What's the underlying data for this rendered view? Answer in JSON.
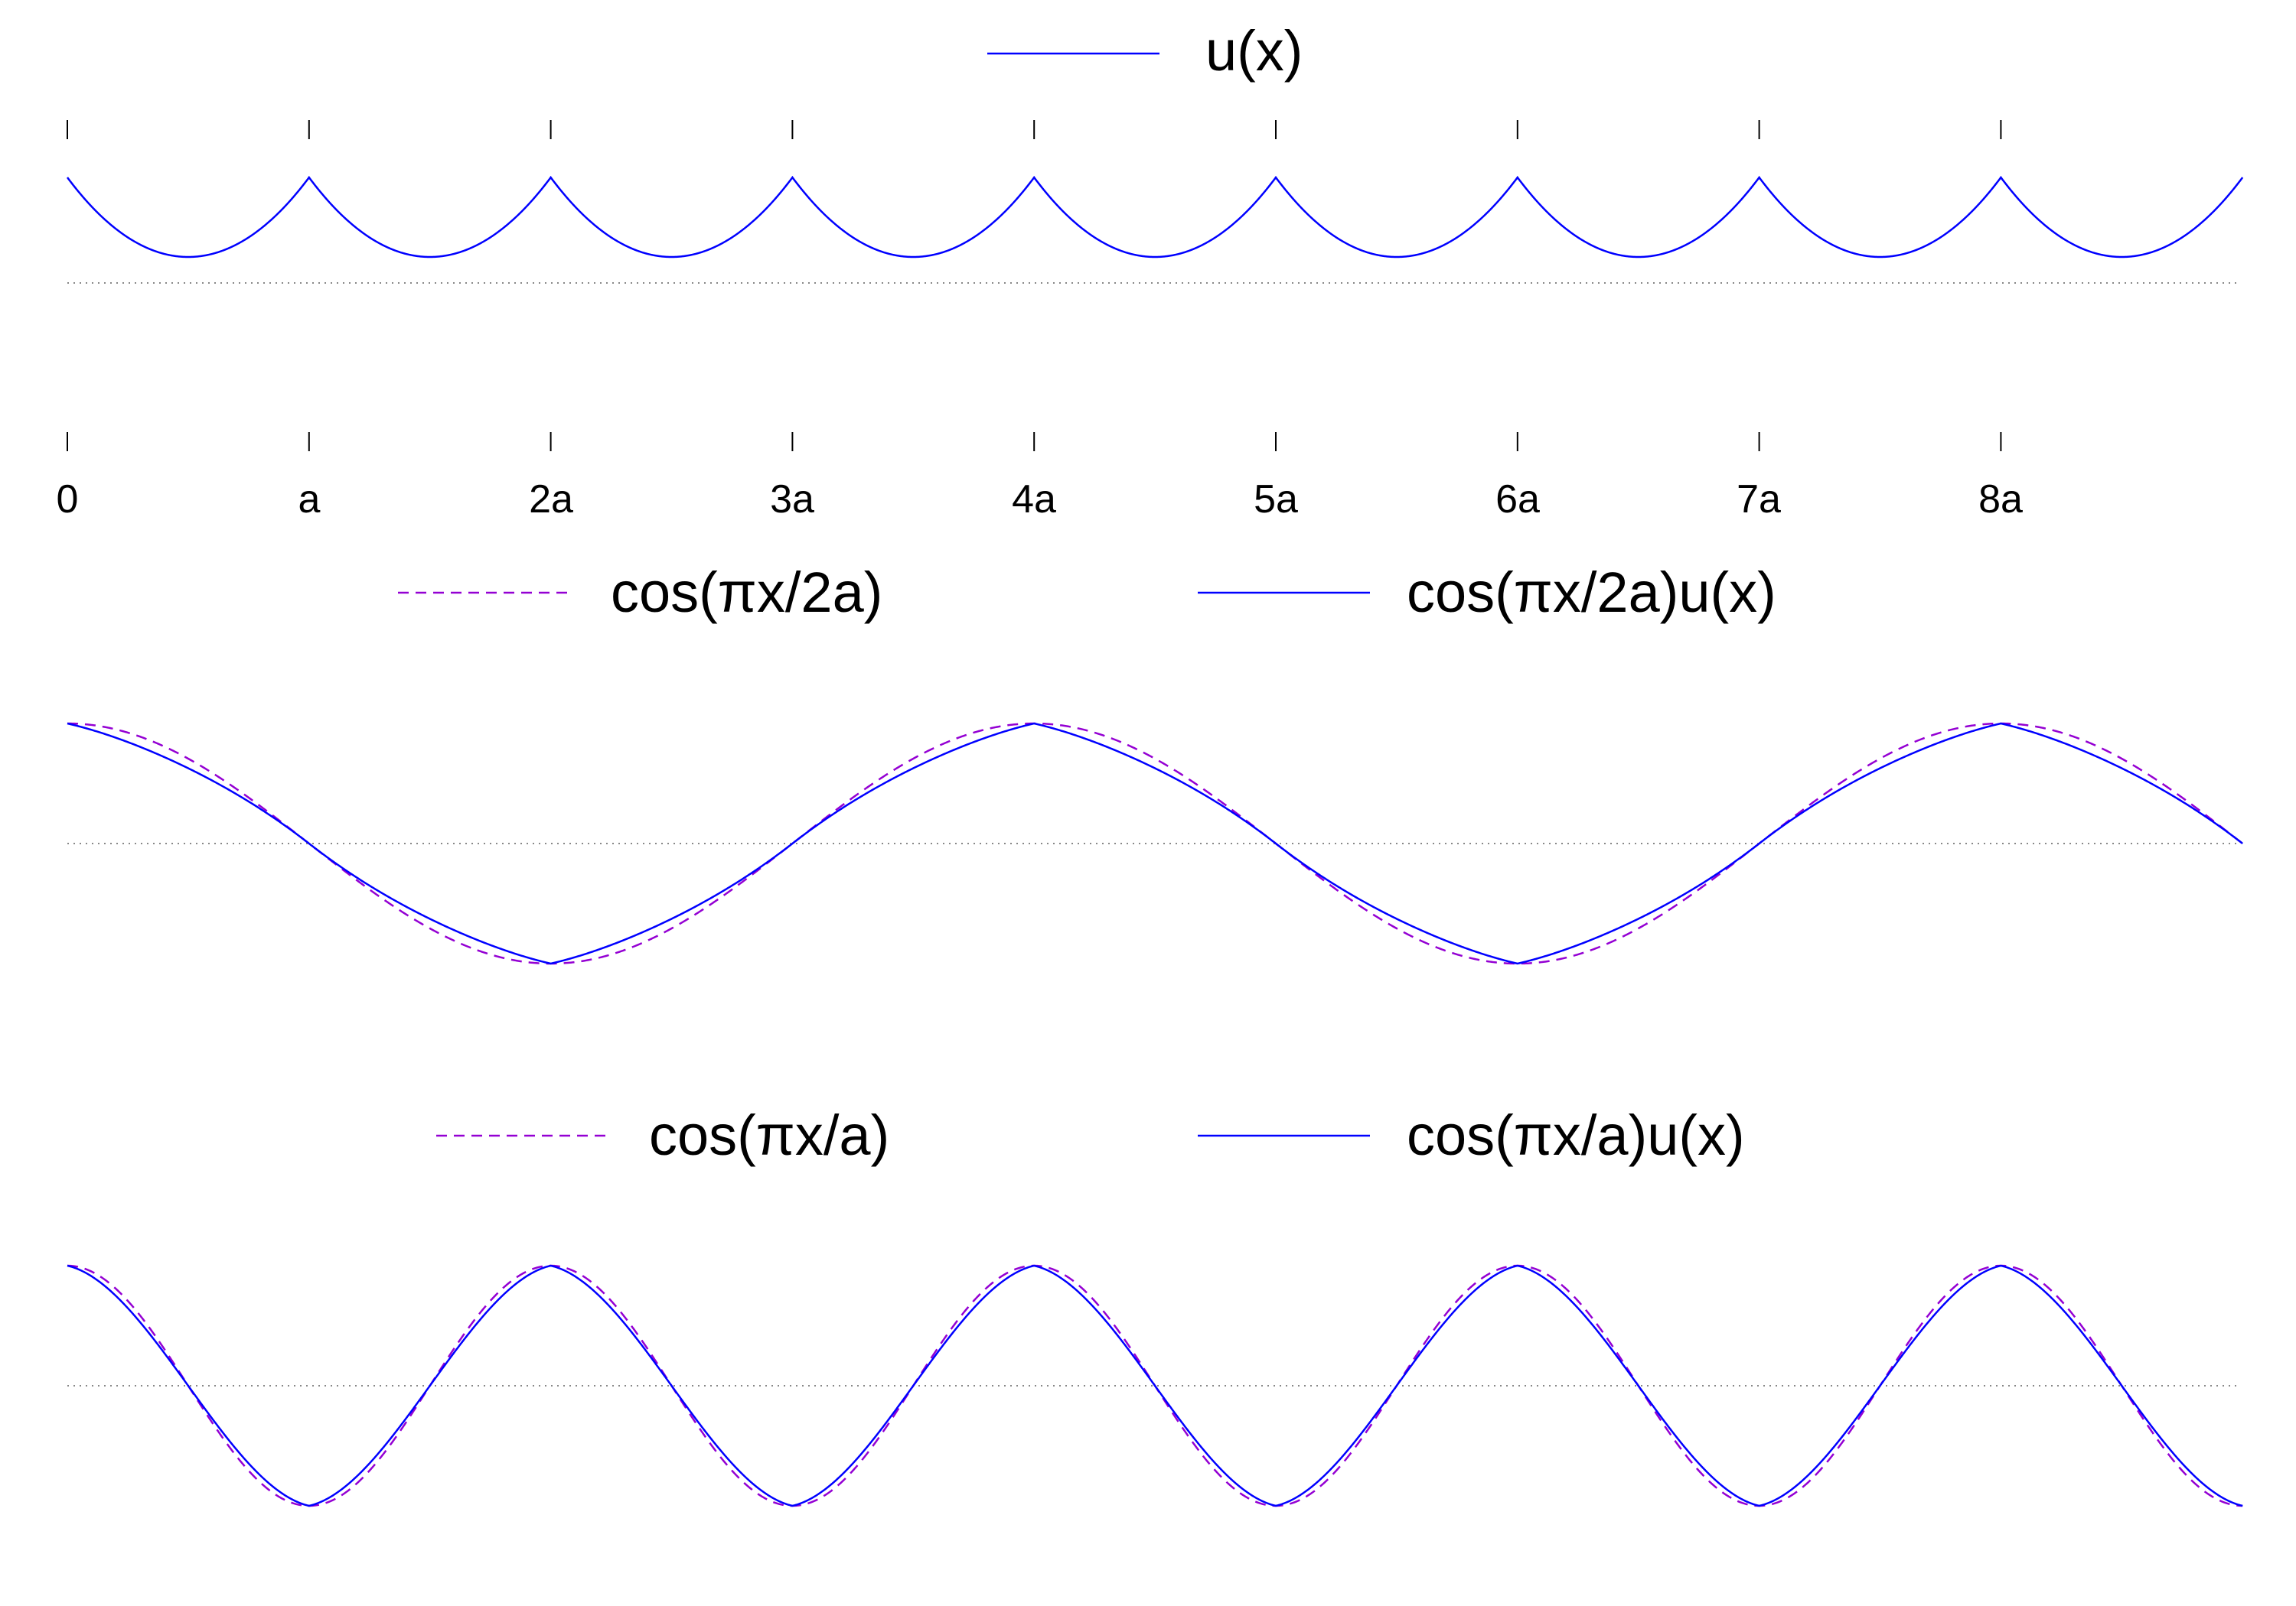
{
  "chart_data": [
    {
      "type": "line",
      "panel": "top",
      "x_tick_labels": [
        "0",
        "a",
        "2a",
        "3a",
        "4a",
        "5a",
        "6a",
        "7a",
        "8a"
      ],
      "x_range": [
        0,
        9
      ],
      "grid": false,
      "zero_line": "dotted",
      "legend_position": "top-center",
      "series": [
        {
          "name": "u(x)",
          "expression": "cosh((x mod 1) - 0.5)",
          "style": "solid",
          "color": "#0000ff"
        }
      ]
    },
    {
      "type": "line",
      "panel": "middle",
      "x_range": [
        0,
        9
      ],
      "grid": false,
      "zero_line": "dotted",
      "legend_position": "top-center",
      "series": [
        {
          "name": "cos(πx/2a)",
          "expression": "cos(pi*x/2)",
          "style": "dashed",
          "color": "#9400d3"
        },
        {
          "name": "cos(πx/2a)u(x)",
          "expression": "cos(pi*x/2)*u(x)",
          "style": "solid",
          "color": "#0000ff"
        }
      ]
    },
    {
      "type": "line",
      "panel": "bottom",
      "x_range": [
        0,
        9
      ],
      "grid": false,
      "zero_line": "dotted",
      "legend_position": "top-center",
      "series": [
        {
          "name": "cos(πx/a)",
          "expression": "cos(pi*x)",
          "style": "dashed",
          "color": "#9400d3"
        },
        {
          "name": "cos(πx/a)u(x)",
          "expression": "cos(pi*x)*u(x)",
          "style": "solid",
          "color": "#0000ff"
        }
      ]
    }
  ]
}
